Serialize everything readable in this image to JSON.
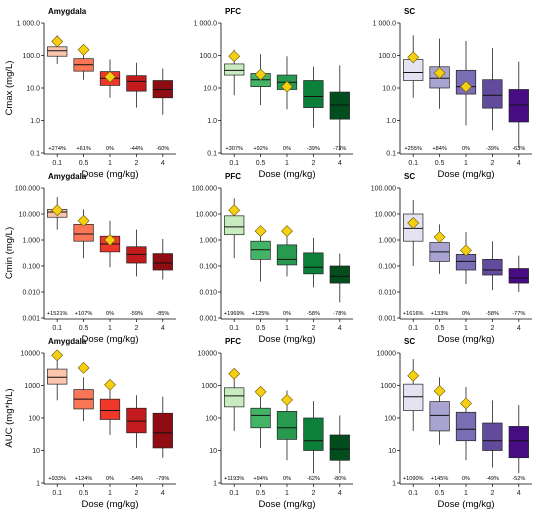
{
  "chart_data": {
    "type": "box",
    "title": "",
    "x_axis_label": "Dose (mg/kg)",
    "categories": [
      "0.1",
      "0.5",
      "1",
      "2",
      "4"
    ],
    "scale": "log10",
    "colors": {
      "Amygdala": [
        "#fcc5ae",
        "#fb7657",
        "#f0382a",
        "#c31a1e",
        "#8e0c12"
      ],
      "PFC": [
        "#c8ecc0",
        "#43b466",
        "#279a4f",
        "#0c7f3b",
        "#024d1d"
      ],
      "SC": [
        "#e4e3f1",
        "#a8a3cf",
        "#7b6db4",
        "#624a9d",
        "#470b82"
      ]
    },
    "rows": [
      {
        "ylabel": "Cmax (mg/L)",
        "ylim": [
          0.1,
          1000
        ],
        "ticks": [
          "0.1",
          "1.0",
          "10.0",
          "100.0",
          "1 000.0"
        ],
        "tick_values": [
          0.1,
          1,
          10,
          100,
          1000
        ],
        "panels": [
          {
            "title": "Amygdala",
            "boxes": [
              [
                55,
                95,
                140,
                185,
                420
              ],
              [
                18,
                33,
                52,
                80,
                140
              ],
              [
                5,
                12,
                20,
                32,
                75
              ],
              [
                2.5,
                8,
                16,
                24,
                60
              ],
              [
                1.5,
                5,
                9,
                17,
                40
              ]
            ],
            "diamonds": [
              270,
              150,
              22,
              null,
              null
            ],
            "percents": [
              "+274%",
              "+61%",
              "0%",
              "-44%",
              "-60%"
            ]
          },
          {
            "title": "PFC",
            "boxes": [
              [
                6,
                25,
                35,
                55,
                150
              ],
              [
                3,
                11,
                18,
                28,
                110
              ],
              [
                2.2,
                9,
                15,
                25,
                95
              ],
              [
                0.6,
                2.5,
                5.5,
                17,
                45
              ],
              [
                0.12,
                1.1,
                3,
                7.5,
                50
              ]
            ],
            "diamonds": [
              95,
              26,
              11,
              null,
              null
            ],
            "percents": [
              "+307%",
              "+92%",
              "0%",
              "-39%",
              "-73%"
            ]
          },
          {
            "title": "SC",
            "boxes": [
              [
                5,
                17,
                30,
                75,
                420
              ],
              [
                2.3,
                10,
                20,
                45,
                330
              ],
              [
                0.7,
                6.5,
                11,
                35,
                280
              ],
              [
                0.5,
                2.4,
                6,
                18,
                170
              ],
              [
                0.15,
                0.9,
                3,
                9,
                65
              ]
            ],
            "diamonds": [
              88,
              29,
              11,
              null,
              null
            ],
            "percents": [
              "+255%",
              "+84%",
              "0%",
              "-39%",
              "-63%"
            ]
          }
        ]
      },
      {
        "ylabel": "Cmin (mg/L)",
        "ylim": [
          0.001,
          100
        ],
        "ticks": [
          "0.001",
          "0.010",
          "0.100",
          "1.000",
          "10.000",
          "100.000"
        ],
        "tick_values": [
          0.001,
          0.01,
          0.1,
          1,
          10,
          100
        ],
        "panels": [
          {
            "title": "Amygdala",
            "boxes": [
              [
                2.5,
                7.5,
                12,
                15,
                45
              ],
              [
                0.2,
                0.9,
                1.7,
                4,
                15
              ],
              [
                0.09,
                0.35,
                0.7,
                1.4,
                5.5
              ],
              [
                0.04,
                0.13,
                0.28,
                0.55,
                2.5
              ],
              [
                0.03,
                0.07,
                0.13,
                0.3,
                1.1
              ]
            ],
            "diamonds": [
              14,
              5.5,
              1,
              null,
              null
            ],
            "percents": [
              "+1521%",
              "+107%",
              "0%",
              "-59%",
              "-85%"
            ]
          },
          {
            "title": "PFC",
            "boxes": [
              [
                0.2,
                1.6,
                3.2,
                8.5,
                40
              ],
              [
                0.025,
                0.18,
                0.42,
                0.9,
                3.2
              ],
              [
                0.04,
                0.11,
                0.18,
                0.65,
                3.2
              ],
              [
                0.015,
                0.05,
                0.09,
                0.32,
                1.2
              ],
              [
                0.004,
                0.022,
                0.04,
                0.1,
                0.3
              ]
            ],
            "diamonds": [
              14,
              2.2,
              2.2,
              null,
              null
            ],
            "percents": [
              "+1969%",
              "+125%",
              "0%",
              "-58%",
              "-78%"
            ]
          },
          {
            "title": "SC",
            "boxes": [
              [
                0.1,
                0.9,
                2.8,
                10,
                35
              ],
              [
                0.05,
                0.15,
                0.35,
                0.8,
                4
              ],
              [
                0.02,
                0.07,
                0.15,
                0.28,
                2
              ],
              [
                0.012,
                0.045,
                0.07,
                0.18,
                0.9
              ],
              [
                0.01,
                0.022,
                0.035,
                0.08,
                0.25
              ]
            ],
            "diamonds": [
              4.5,
              1.3,
              0.4,
              null,
              null
            ],
            "percents": [
              "+1616%",
              "+133%",
              "0%",
              "-58%",
              "-77%"
            ]
          }
        ]
      },
      {
        "ylabel": "AUC (mg*h/L)",
        "ylim": [
          1,
          10000
        ],
        "ticks": [
          "1",
          "10",
          "100",
          "1000",
          "10000"
        ],
        "tick_values": [
          1,
          10,
          100,
          1000,
          10000
        ],
        "panels": [
          {
            "title": "Amygdala",
            "boxes": [
              [
                350,
                1100,
                1800,
                3200,
                8500
              ],
              [
                80,
                190,
                380,
                750,
                1800
              ],
              [
                30,
                90,
                170,
                380,
                1200
              ],
              [
                12,
                35,
                80,
                200,
                500
              ],
              [
                6,
                12,
                35,
                140,
                450
              ]
            ],
            "diamonds": [
              8500,
              3500,
              1050,
              null,
              null
            ],
            "percents": [
              "+933%",
              "+124%",
              "0%",
              "-54%",
              "-79%"
            ]
          },
          {
            "title": "PFC",
            "boxes": [
              [
                40,
                220,
                480,
                850,
                3000
              ],
              [
                12,
                50,
                120,
                200,
                700
              ],
              [
                5,
                22,
                50,
                160,
                700
              ],
              [
                2,
                10,
                20,
                100,
                330
              ],
              [
                2,
                5,
                11,
                30,
                120
              ]
            ],
            "diamonds": [
              2300,
              640,
              360,
              null,
              null
            ],
            "percents": [
              "+1193%",
              "+94%",
              "0%",
              "-62%",
              "-80%"
            ]
          },
          {
            "title": "SC",
            "boxes": [
              [
                40,
                170,
                450,
                1100,
                6500
              ],
              [
                15,
                40,
                120,
                320,
                1800
              ],
              [
                5,
                20,
                45,
                150,
                900
              ],
              [
                3,
                10,
                20,
                70,
                350
              ],
              [
                2,
                6,
                20,
                55,
                250
              ]
            ],
            "diamonds": [
              2000,
              680,
              280,
              null,
              null
            ],
            "percents": [
              "+1090%",
              "+145%",
              "0%",
              "-49%",
              "-52%"
            ]
          }
        ]
      }
    ]
  }
}
